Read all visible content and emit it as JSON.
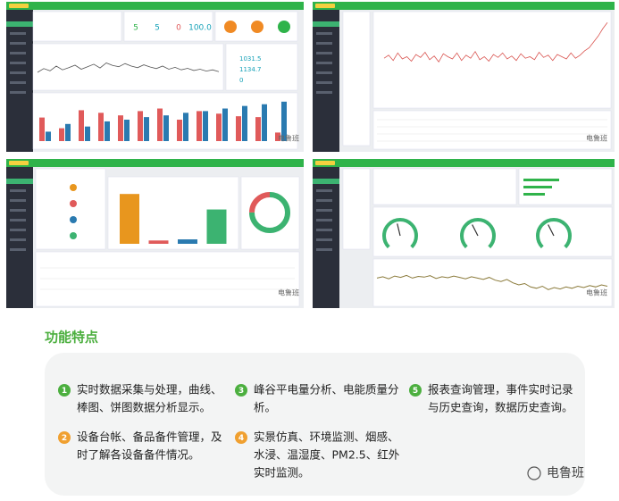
{
  "screenshots": [
    {
      "stats": [
        "5",
        "5",
        "0",
        "100.0"
      ],
      "readings": [
        "1031.5",
        "1134.7",
        "0"
      ],
      "line": {
        "ylim": [
          0,
          100
        ],
        "color": "#555555",
        "values": [
          40,
          52,
          45,
          60,
          48,
          55,
          63,
          50,
          58,
          66,
          54,
          70,
          62,
          58,
          68,
          60,
          55,
          64,
          57,
          52,
          60,
          50,
          56,
          48,
          53,
          46,
          50,
          44,
          48,
          42
        ]
      },
      "bars": {
        "ylim": [
          0,
          100
        ],
        "series": [
          {
            "color": "#e05a5a",
            "values": [
              55,
              30,
              72,
              66,
              60,
              70,
              76,
              50,
              70,
              64,
              58,
              56,
              20
            ]
          },
          {
            "color": "#2a7ab0",
            "values": [
              22,
              40,
              34,
              46,
              50,
              56,
              60,
              66,
              70,
              76,
              82,
              86,
              92
            ]
          }
        ]
      },
      "watermark": "电鲁班"
    },
    {
      "line": {
        "ylim": [
          0,
          100
        ],
        "color": "#d9534f",
        "values": [
          48,
          52,
          45,
          55,
          47,
          50,
          44,
          53,
          49,
          56,
          46,
          51,
          43,
          54,
          50,
          47,
          55,
          45,
          52,
          48,
          57,
          46,
          50,
          44,
          53,
          49,
          55,
          47,
          51,
          45,
          54,
          48,
          50,
          46,
          56,
          49,
          52,
          45,
          53,
          50,
          47,
          55,
          48,
          52,
          58,
          62,
          70,
          78,
          88,
          96
        ]
      },
      "watermark": "电鲁班"
    },
    {
      "bars": {
        "ylim": [
          0,
          100
        ],
        "values": [
          90,
          6,
          8,
          62
        ],
        "colors": [
          "#e8961e",
          "#e05a5a",
          "#2a7ab0",
          "#3cb371"
        ]
      },
      "donut": {
        "values": [
          75,
          25
        ],
        "colors": [
          "#3cb371",
          "#e05a5a"
        ]
      },
      "watermark": "电鲁班"
    },
    {
      "gauges": {
        "lim": [
          0,
          100
        ],
        "values": [
          45,
          40,
          40
        ]
      },
      "line": {
        "ylim": [
          0,
          100
        ],
        "color": "#8a7a3a",
        "values": [
          70,
          74,
          68,
          76,
          72,
          78,
          70,
          75,
          73,
          77,
          69,
          74,
          71,
          76,
          72,
          68,
          74,
          70,
          66,
          72,
          64,
          60,
          66,
          56,
          50,
          54,
          44,
          40,
          46,
          36,
          42,
          38,
          44,
          40,
          46,
          42,
          48,
          44,
          50,
          46
        ]
      },
      "watermark": "电鲁班"
    }
  ],
  "features": {
    "title": "功能特点",
    "items": [
      {
        "number": "1",
        "lines": [
          "实时数据采集与处理，曲线、",
          "棒图、饼图数据分析显示。"
        ]
      },
      {
        "number": "2",
        "lines": [
          "设备台帐、备品备件管理，及",
          "时了解各设备备件情况。"
        ]
      },
      {
        "number": "3",
        "lines": [
          "峰谷平电量分析、电能质量分",
          "析。"
        ]
      },
      {
        "number": "4",
        "lines": [
          "实景仿真、环境监测、烟感、",
          "水浸、温湿度、PM2.5、红外",
          "实时监测。"
        ]
      },
      {
        "number": "5",
        "lines": [
          "报表查询管理，事件实时记录",
          "与历史查询，数据历史查询。"
        ]
      }
    ]
  },
  "watermark": "电鲁班"
}
